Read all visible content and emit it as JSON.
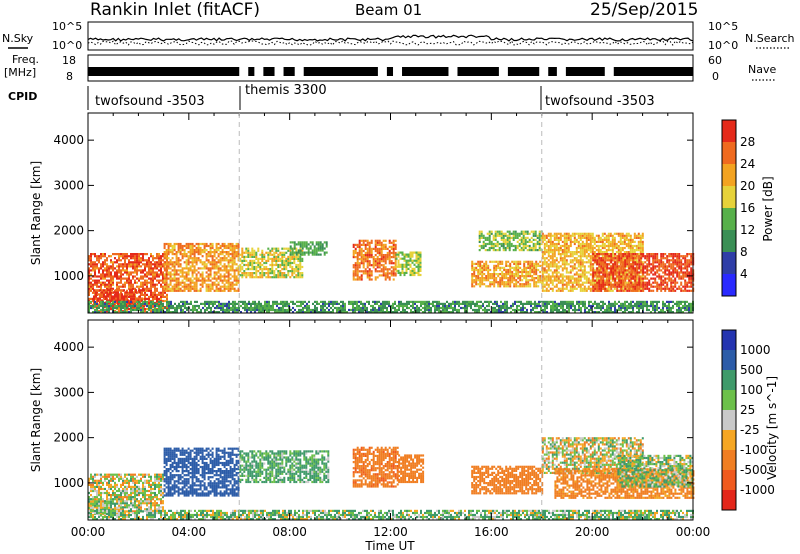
{
  "header": {
    "title": "Rankin Inlet (fitACF)",
    "beam": "Beam 01",
    "date": "25/Sep/2015"
  },
  "top_panels": {
    "nsky_label": "N.Sky",
    "nsky_ticks": [
      "10^5",
      "10^0"
    ],
    "nsearch_label": "N.Search",
    "nsearch_ticks": [
      "10^5",
      "10^0"
    ],
    "freq_label": "Freq.",
    "freq_unit": "[MHz]",
    "freq_ticks": [
      "18",
      "8"
    ],
    "nave_label": "Nave",
    "nave_ticks": [
      "60",
      "0"
    ],
    "cpid_label": "CPID",
    "cpid_segments": [
      {
        "name": "twofsound -3503",
        "start_h": 0
      },
      {
        "name": "themis 3300",
        "start_h": 6
      },
      {
        "name": "twofsound -3503",
        "start_h": 18
      }
    ]
  },
  "colors": {
    "power": [
      "#2a2aff",
      "#2f3ea7",
      "#3a8f55",
      "#57b04a",
      "#e6d23a",
      "#f3a321",
      "#ef6a1f",
      "#e52a1a"
    ],
    "velocity": [
      "#e3261a",
      "#f05a1e",
      "#f07e22",
      "#f5a623",
      "#c9c9c9",
      "#6cc04a",
      "#3f9a6a",
      "#2c5ca8",
      "#2434b0"
    ]
  },
  "chart_data": [
    {
      "type": "heatmap",
      "title": "",
      "ylabel": "Slant Range [km]",
      "xlabel": "Time UT",
      "x_ticks": [
        "00:00",
        "04:00",
        "08:00",
        "12:00",
        "16:00",
        "20:00",
        "00:00"
      ],
      "x_range_hours": [
        0,
        24
      ],
      "y_ticks": [
        1000,
        2000,
        3000,
        4000
      ],
      "ylim": [
        180,
        4600
      ],
      "colorbar": {
        "label": "Power [dB]",
        "ticks": [
          4,
          8,
          12,
          16,
          20,
          24,
          28
        ],
        "range": [
          0,
          32
        ]
      },
      "regions": [
        {
          "t0": 0.0,
          "t1": 3.1,
          "r0": 200,
          "r1": 1500,
          "level": 27
        },
        {
          "t0": 0.2,
          "t1": 2.2,
          "r0": 300,
          "r1": 700,
          "level": 29
        },
        {
          "t0": 3.0,
          "t1": 6.0,
          "r0": 650,
          "r1": 1700,
          "level": 23
        },
        {
          "t0": 6.0,
          "t1": 8.5,
          "r0": 950,
          "r1": 1600,
          "level": 18
        },
        {
          "t0": 8.0,
          "t1": 9.5,
          "r0": 1450,
          "r1": 1750,
          "level": 12
        },
        {
          "t0": 10.5,
          "t1": 12.2,
          "r0": 900,
          "r1": 1800,
          "level": 25
        },
        {
          "t0": 12.2,
          "t1": 13.2,
          "r0": 1000,
          "r1": 1500,
          "level": 16
        },
        {
          "t0": 15.2,
          "t1": 18.0,
          "r0": 750,
          "r1": 1300,
          "level": 22
        },
        {
          "t0": 15.5,
          "t1": 18.0,
          "r0": 1550,
          "r1": 2000,
          "level": 15
        },
        {
          "t0": 18.0,
          "t1": 22.0,
          "r0": 650,
          "r1": 1950,
          "level": 21
        },
        {
          "t0": 20.0,
          "t1": 24.0,
          "r0": 650,
          "r1": 1500,
          "level": 28
        },
        {
          "t0": 0.0,
          "t1": 24.0,
          "r0": 180,
          "r1": 420,
          "level": 11
        }
      ]
    },
    {
      "type": "heatmap",
      "title": "",
      "ylabel": "Slant Range [km]",
      "xlabel": "Time UT",
      "x_ticks": [
        "00:00",
        "04:00",
        "08:00",
        "12:00",
        "16:00",
        "20:00",
        "00:00"
      ],
      "x_range_hours": [
        0,
        24
      ],
      "y_ticks": [
        1000,
        2000,
        3000,
        4000
      ],
      "ylim": [
        180,
        4600
      ],
      "colorbar": {
        "label": "Velocity [m s^-1]",
        "ticks": [
          1000,
          500,
          100,
          25,
          -25,
          -100,
          -500,
          -1000
        ]
      },
      "regions": [
        {
          "t0": 0.0,
          "t1": 3.0,
          "r0": 350,
          "r1": 1200,
          "level": 0
        },
        {
          "t0": 0.0,
          "t1": 1.3,
          "r0": 250,
          "r1": 600,
          "level": 50
        },
        {
          "t0": 3.0,
          "t1": 6.0,
          "r0": 700,
          "r1": 1750,
          "level": 700
        },
        {
          "t0": 6.0,
          "t1": 9.5,
          "r0": 1000,
          "r1": 1700,
          "level": 150
        },
        {
          "t0": 10.5,
          "t1": 12.3,
          "r0": 900,
          "r1": 1800,
          "level": -400
        },
        {
          "t0": 12.3,
          "t1": 13.3,
          "r0": 1000,
          "r1": 1600,
          "level": -300
        },
        {
          "t0": 15.2,
          "t1": 18.0,
          "r0": 750,
          "r1": 1350,
          "level": -350
        },
        {
          "t0": 18.0,
          "t1": 22.0,
          "r0": 1200,
          "r1": 2000,
          "level": 0
        },
        {
          "t0": 18.5,
          "t1": 24.0,
          "r0": 650,
          "r1": 1300,
          "level": -200
        },
        {
          "t0": 21.0,
          "t1": 24.0,
          "r0": 900,
          "r1": 1600,
          "level": 60
        },
        {
          "t0": 0.0,
          "t1": 24.0,
          "r0": 180,
          "r1": 400,
          "level": 80
        }
      ]
    }
  ]
}
